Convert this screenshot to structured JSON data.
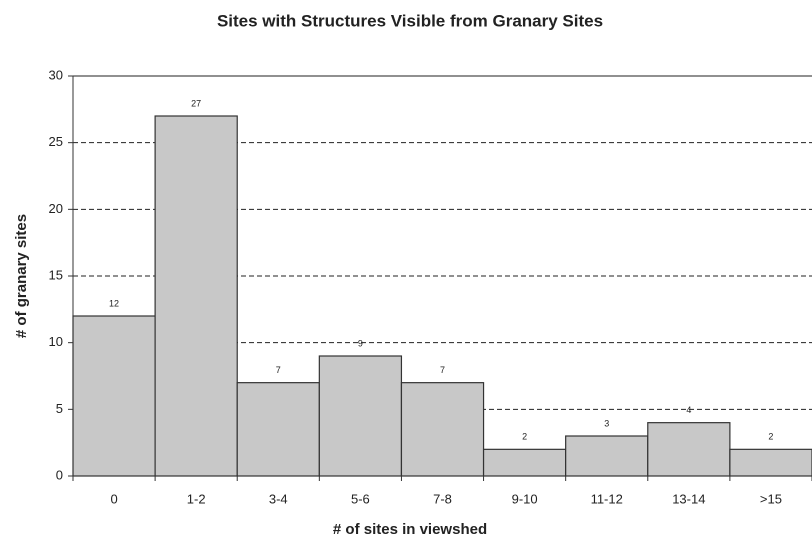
{
  "chart_data": {
    "type": "bar",
    "title": "Sites with Structures Visible from Granary Sites",
    "x_label": "# of sites in viewshed",
    "y_label": "# of granary sites",
    "categories": [
      "0",
      "1-2",
      "3-4",
      "5-6",
      "7-8",
      "9-10",
      "11-12",
      "13-14",
      ">15"
    ],
    "values": [
      12,
      27,
      7,
      9,
      7,
      2,
      3,
      4,
      2
    ],
    "color": "#c8c8c8",
    "ylim": [
      0,
      30
    ],
    "yticks": [
      0,
      5,
      10,
      15,
      20,
      25,
      30
    ],
    "grid": true
  }
}
